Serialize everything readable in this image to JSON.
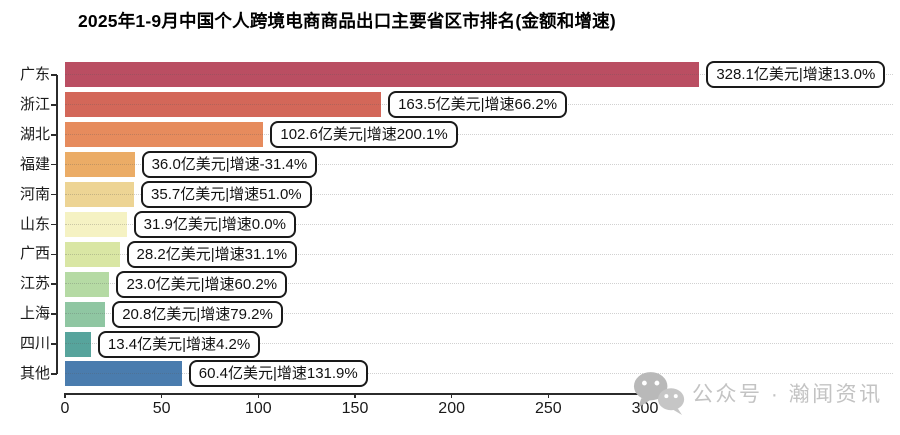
{
  "title": "2025年1-9月中国个人跨境电商商品出口主要省区市排名(金额和增速)",
  "watermark": {
    "icon": "wechat-icon",
    "label": "公众号 · 瀚闻资讯",
    "color": "#c3c3c3"
  },
  "chart_data": {
    "type": "bar",
    "orientation": "horizontal",
    "title": "2025年1-9月中国个人跨境电商商品出口主要省区市排名(金额和增速)",
    "unit": "亿美元",
    "categories": [
      "广东",
      "浙江",
      "湖北",
      "福建",
      "河南",
      "山东",
      "广西",
      "江苏",
      "上海",
      "四川",
      "其他"
    ],
    "values": [
      328.1,
      163.5,
      102.6,
      36.0,
      35.7,
      31.9,
      28.2,
      23.0,
      20.8,
      13.4,
      60.4
    ],
    "growth_pct": [
      13.0,
      66.2,
      200.1,
      -31.4,
      51.0,
      0.0,
      31.1,
      60.2,
      79.2,
      4.2,
      131.9
    ],
    "bar_labels": [
      "328.1亿美元|增速13.0%",
      "163.5亿美元|增速66.2%",
      "102.6亿美元|增速200.1%",
      "36.0亿美元|增速-31.4%",
      "35.7亿美元|增速51.0%",
      "31.9亿美元|增速0.0%",
      "28.2亿美元|增速31.1%",
      "23.0亿美元|增速60.2%",
      "20.8亿美元|增速79.2%",
      "13.4亿美元|增速4.2%",
      "60.4亿美元|增速131.9%"
    ],
    "bar_colors": [
      "#BA4E62",
      "#D36759",
      "#E68B5D",
      "#EBAC66",
      "#EDD494",
      "#F5F2C3",
      "#D9E6A4",
      "#B5DAA4",
      "#8FC6A2",
      "#57A49C",
      "#4A7CAE"
    ],
    "x_ticks": [
      0,
      50,
      100,
      150,
      200,
      250,
      300
    ],
    "xlim": [
      0,
      300
    ],
    "grid": "dotted horizontal line per category row",
    "axis_color": "#2b2b2b",
    "grid_color": "#d0d0d0",
    "legend": "none"
  }
}
